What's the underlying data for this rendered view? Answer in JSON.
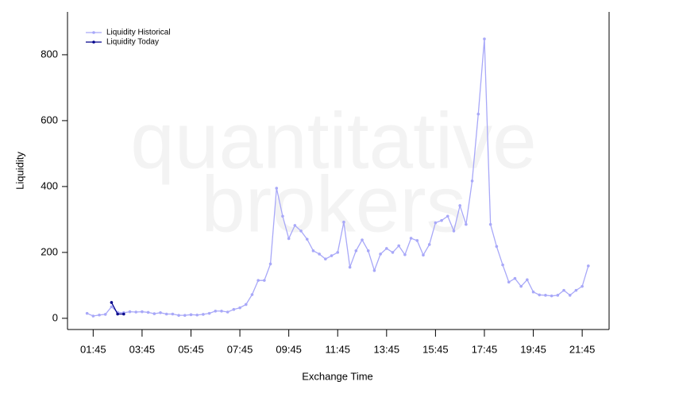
{
  "chart_data": {
    "type": "line",
    "x_label": "Exchange Time",
    "y_label": "Liquidity",
    "annotations": [
      "quantitative",
      "brokers"
    ],
    "legend": "upper left",
    "x": [
      1.5,
      1.75,
      2,
      2.25,
      2.5,
      2.75,
      3,
      3.25,
      3.5,
      3.75,
      4,
      4.25,
      4.5,
      4.75,
      5,
      5.25,
      5.5,
      5.75,
      6,
      6.25,
      6.5,
      6.75,
      7,
      7.25,
      7.5,
      7.75,
      8,
      8.25,
      8.5,
      8.75,
      9,
      9.25,
      9.5,
      9.75,
      10,
      10.25,
      10.5,
      10.75,
      11,
      11.25,
      11.5,
      11.75,
      12,
      12.25,
      12.5,
      12.75,
      13,
      13.25,
      13.5,
      13.75,
      14,
      14.25,
      14.5,
      14.75,
      15,
      15.25,
      15.5,
      15.75,
      16,
      16.25,
      16.5,
      16.75,
      17,
      17.25,
      17.5,
      17.75,
      18,
      18.25,
      18.5,
      18.75,
      19,
      19.25,
      19.5,
      19.75,
      20,
      20.25,
      20.5,
      20.75,
      21,
      21.25,
      21.5,
      21.75,
      22
    ],
    "series": [
      {
        "name": "Liquidity Historical",
        "color": "#a8a8f8",
        "values": [
          15,
          7,
          10,
          12,
          35,
          18,
          17,
          20,
          19,
          20,
          18,
          14,
          17,
          13,
          13,
          9,
          9,
          11,
          10,
          12,
          15,
          22,
          22,
          19,
          27,
          32,
          42,
          72,
          115,
          115,
          165,
          395,
          310,
          242,
          282,
          265,
          240,
          205,
          195,
          180,
          190,
          200,
          292,
          155,
          205,
          238,
          205,
          145,
          195,
          212,
          200,
          220,
          193,
          243,
          236,
          192,
          224,
          290,
          297,
          310,
          265,
          342,
          285,
          417,
          620,
          848,
          285,
          218,
          162,
          110,
          121,
          97,
          117,
          80,
          71,
          70,
          68,
          70,
          85,
          70,
          85,
          97,
          159
        ]
      },
      {
        "name": "Liquidity Today",
        "color": "#00008b",
        "values": [
          null,
          null,
          null,
          null,
          48,
          13,
          13,
          null,
          null,
          null,
          null,
          null,
          null,
          null,
          null,
          null,
          null,
          null,
          null,
          null,
          null,
          null,
          null,
          null,
          null,
          null,
          null,
          null,
          null,
          null,
          null,
          null,
          null,
          null,
          null,
          null,
          null,
          null,
          null,
          null,
          null,
          null,
          null,
          null,
          null,
          null,
          null,
          null,
          null,
          null,
          null,
          null,
          null,
          null,
          null,
          null,
          null,
          null,
          null,
          null,
          null,
          null,
          null,
          null,
          null,
          null,
          null,
          null,
          null,
          null,
          null,
          null,
          null,
          null,
          null,
          null,
          null,
          null,
          null,
          null,
          null,
          null,
          null
        ]
      }
    ],
    "xlim": [
      0.7,
      22.85
    ],
    "xticks": [
      {
        "value": 1.75,
        "label": "01:45"
      },
      {
        "value": 3.75,
        "label": "03:45"
      },
      {
        "value": 5.75,
        "label": "05:45"
      },
      {
        "value": 7.75,
        "label": "07:45"
      },
      {
        "value": 9.75,
        "label": "09:45"
      },
      {
        "value": 11.75,
        "label": "11:45"
      },
      {
        "value": 13.75,
        "label": "13:45"
      },
      {
        "value": 15.75,
        "label": "15:45"
      },
      {
        "value": 17.75,
        "label": "17:45"
      },
      {
        "value": 19.75,
        "label": "19:45"
      },
      {
        "value": 21.75,
        "label": "21:45"
      }
    ],
    "ylim": [
      -34,
      930
    ],
    "yticks": [
      0,
      200,
      400,
      600,
      800
    ]
  }
}
